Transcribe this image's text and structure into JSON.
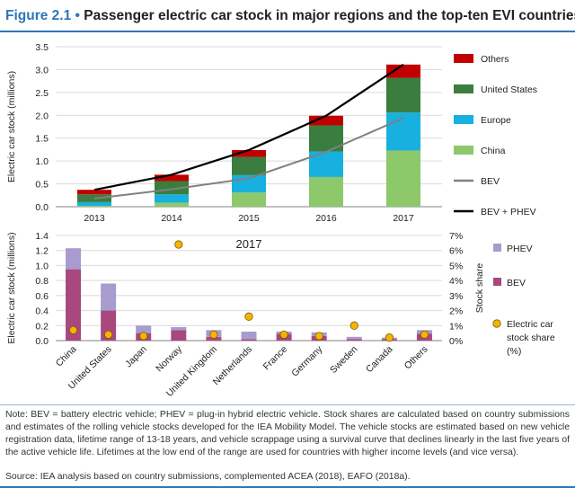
{
  "header": {
    "figure_label": "Figure 2.1",
    "bullet": "•",
    "title": "Passenger electric car stock in major regions and the top-ten EVI countries"
  },
  "chart_data": [
    {
      "type": "bar",
      "stacked": true,
      "ylabel": "Electric car stock (millions)",
      "ylim": [
        0,
        3.5
      ],
      "yticks": [
        0.0,
        0.5,
        1.0,
        1.5,
        2.0,
        2.5,
        3.0,
        3.5
      ],
      "categories": [
        "2013",
        "2014",
        "2015",
        "2016",
        "2017"
      ],
      "series": [
        {
          "name": "China",
          "kind": "bar",
          "color": "#8dc86b",
          "values": [
            0.02,
            0.09,
            0.31,
            0.65,
            1.23
          ]
        },
        {
          "name": "Europe",
          "kind": "bar",
          "color": "#18b0de",
          "values": [
            0.08,
            0.18,
            0.38,
            0.56,
            0.83
          ]
        },
        {
          "name": "United States",
          "kind": "bar",
          "color": "#3a7d3e",
          "values": [
            0.17,
            0.29,
            0.4,
            0.57,
            0.76
          ]
        },
        {
          "name": "Others",
          "kind": "bar",
          "color": "#c00000",
          "values": [
            0.1,
            0.14,
            0.15,
            0.21,
            0.29
          ]
        },
        {
          "name": "BEV",
          "kind": "line",
          "color": "#808080",
          "values": [
            0.18,
            0.38,
            0.62,
            1.2,
            1.94
          ]
        },
        {
          "name": "BEV + PHEV",
          "kind": "line",
          "color": "#000000",
          "values": [
            0.37,
            0.7,
            1.24,
            1.99,
            3.11
          ]
        }
      ],
      "legend_order": [
        "Others",
        "United States",
        "Europe",
        "China",
        "BEV",
        "BEV + PHEV"
      ],
      "legend_position": "right"
    },
    {
      "type": "bar",
      "stacked": true,
      "title": "2017",
      "ylabel": "Electric car stock (millions)",
      "y2label": "Stock share",
      "ylim": [
        0,
        1.4
      ],
      "yticks": [
        0.0,
        0.2,
        0.4,
        0.6,
        0.8,
        1.0,
        1.2,
        1.4
      ],
      "y2lim": [
        0,
        7
      ],
      "y2ticks": [
        "0%",
        "1%",
        "2%",
        "3%",
        "4%",
        "5%",
        "6%",
        "7%"
      ],
      "categories": [
        "China",
        "United States",
        "Japan",
        "Norway",
        "United Kingdom",
        "Netherlands",
        "France",
        "Germany",
        "Sweden",
        "Canada",
        "Others"
      ],
      "series": [
        {
          "name": "BEV",
          "kind": "bar",
          "color": "#a8487e",
          "values": [
            0.95,
            0.4,
            0.1,
            0.14,
            0.05,
            0.02,
            0.09,
            0.06,
            0.02,
            0.02,
            0.09
          ]
        },
        {
          "name": "PHEV",
          "kind": "bar",
          "color": "#a89bcd",
          "values": [
            0.28,
            0.36,
            0.1,
            0.04,
            0.09,
            0.1,
            0.03,
            0.05,
            0.03,
            0.02,
            0.05
          ]
        },
        {
          "name": "Electric car stock share (%)",
          "kind": "scatter",
          "color": "#f5b400",
          "axis": "y2",
          "values": [
            0.7,
            0.4,
            0.3,
            6.4,
            0.4,
            1.6,
            0.4,
            0.3,
            1.0,
            0.2,
            0.4
          ]
        }
      ],
      "legend_order": [
        "PHEV",
        "BEV",
        "Electric car stock share (%)"
      ],
      "legend_position": "right"
    }
  ],
  "notes": {
    "note": "Note: BEV = battery electric vehicle; PHEV = plug-in hybrid electric vehicle. Stock shares are calculated based on country submissions and estimates of the rolling vehicle stocks developed for the IEA Mobility Model. The vehicle stocks are estimated based on new vehicle registration data, lifetime range of 13-18 years, and vehicle scrappage using a survival curve that declines linearly in the last five years of the active vehicle life. Lifetimes at the low end of the range are used for countries with higher income levels (and vice versa).",
    "source": "Source: IEA analysis based on country submissions, complemented ACEA (2018), EAFO (2018a)."
  }
}
